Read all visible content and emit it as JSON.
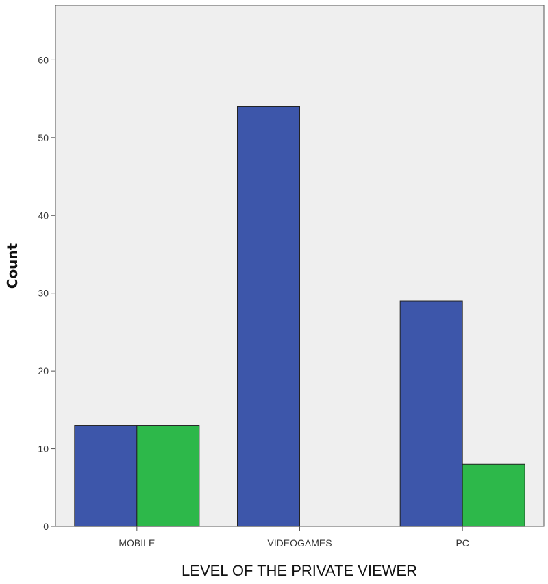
{
  "chart_data": {
    "type": "bar",
    "title": "",
    "xlabel": "LEVEL OF THE PRIVATE VIEWER",
    "ylabel": "Count",
    "categories": [
      "MOBILE",
      "VIDEOGAMES",
      "PC"
    ],
    "series": [
      {
        "values": [
          13,
          54,
          29
        ],
        "color": "#3d56aa"
      },
      {
        "values": [
          13,
          0,
          8
        ],
        "color": "#2db84a"
      }
    ],
    "ylim": [
      0,
      67
    ],
    "yticks": [
      0,
      10,
      20,
      30,
      40,
      50,
      60
    ],
    "grid": false,
    "legend": "none",
    "plot_background": "#efefef"
  }
}
